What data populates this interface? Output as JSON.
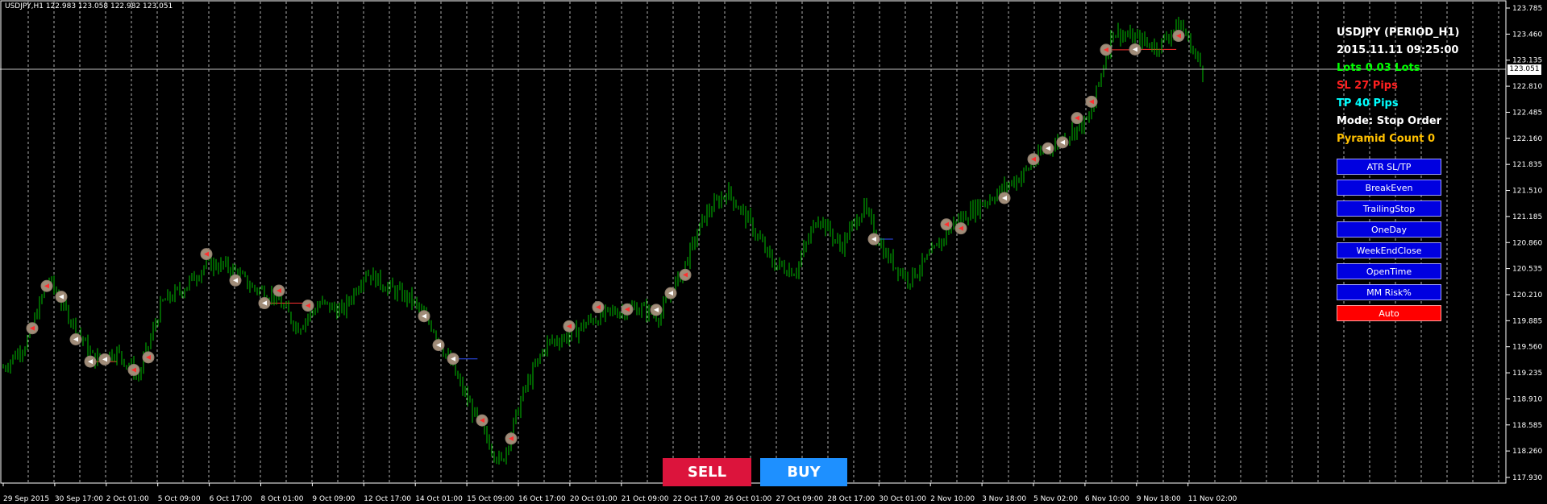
{
  "header": {
    "symbol_info": "USDJPY,H1  122.983 123.058 122.982 123.051"
  },
  "info_panel": {
    "title": "USDJPY (PERIOD_H1)",
    "datetime": "2015.11.11 09:25:00",
    "lots": "Lots 0.03 Lots",
    "sl": "SL 27 Pips",
    "tp": "TP 40 Pips",
    "mode": "Mode: Stop Order",
    "pyramid": "Pyramid Count 0",
    "colors": {
      "title": "#ffffff",
      "datetime": "#ffffff",
      "lots": "#00ff00",
      "sl": "#ff2020",
      "tp": "#00ffff",
      "mode": "#ffffff",
      "pyramid": "#ffc000"
    }
  },
  "panel_buttons": [
    "ATR SL/TP",
    "BreakEven",
    "TrailingStop",
    "OneDay",
    "WeekEndClose",
    "OpenTime",
    "MM Risk%",
    "Auto"
  ],
  "trade_buttons": {
    "sell": "SELL",
    "buy": "BUY",
    "sell_color": "#dc143c",
    "buy_color": "#1e90ff"
  },
  "price_axis": {
    "labels": [
      "123.785",
      "123.460",
      "123.135",
      "122.810",
      "122.485",
      "122.160",
      "121.835",
      "121.510",
      "121.185",
      "120.860",
      "120.535",
      "120.210",
      "119.885",
      "119.560",
      "119.235",
      "118.910",
      "118.585",
      "118.260",
      "117.930"
    ],
    "current_price": "123.051"
  },
  "time_axis": {
    "labels": [
      "29 Sep 2015",
      "30 Sep 17:00",
      "2 Oct 01:00",
      "5 Oct 09:00",
      "6 Oct 17:00",
      "8 Oct 01:00",
      "9 Oct 09:00",
      "12 Oct 17:00",
      "14 Oct 01:00",
      "15 Oct 09:00",
      "16 Oct 17:00",
      "20 Oct 01:00",
      "21 Oct 09:00",
      "22 Oct 17:00",
      "26 Oct 01:00",
      "27 Oct 09:00",
      "28 Oct 17:00",
      "30 Oct 01:00",
      "2 Nov 10:00",
      "3 Nov 18:00",
      "5 Nov 02:00",
      "6 Nov 10:00",
      "9 Nov 18:00",
      "11 Nov 02:00"
    ]
  },
  "chart_data": {
    "type": "line",
    "title": "USDJPY,H1",
    "ylim": [
      117.93,
      123.785
    ],
    "candle_color": "#00c000",
    "series": [
      {
        "values": [
          119.3,
          119.6,
          120.4,
          119.9,
          119.4,
          119.5,
          119.2,
          120.1,
          120.3,
          120.6,
          120.55,
          120.3,
          120.2,
          119.8,
          120.1,
          120.0,
          120.5,
          120.3,
          120.15,
          119.8,
          119.2,
          118.6,
          118.1,
          119.0,
          119.6,
          119.7,
          119.9,
          120.0,
          120.05,
          119.95,
          120.5,
          121.2,
          121.5,
          121.1,
          120.6,
          120.5,
          121.2,
          120.8,
          121.3,
          120.7,
          120.4,
          120.7,
          121.1,
          121.3,
          121.5,
          121.7,
          122.0,
          122.2,
          122.4,
          123.5,
          123.4,
          123.3,
          123.6,
          123.0
        ]
      }
    ]
  }
}
